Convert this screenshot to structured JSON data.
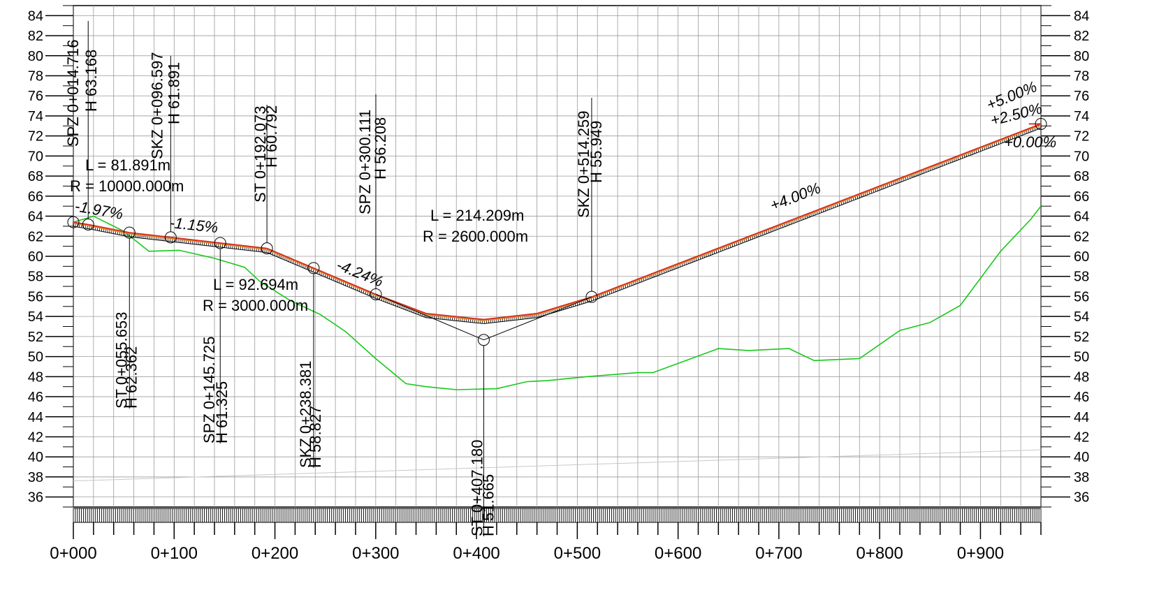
{
  "colors": {
    "background": "#ffffff",
    "grid": "#9a9a9a",
    "axis": "#000000",
    "design_line": "#d62b1e",
    "design_line_shadow": "#e08a2c",
    "terrain": "#18c81a",
    "hatch": "#000000",
    "text": "#000000"
  },
  "chart_data": {
    "type": "line",
    "elevation_ticks": [
      "84",
      "82",
      "80",
      "78",
      "76",
      "74",
      "72",
      "70",
      "68",
      "66",
      "64",
      "62",
      "60",
      "58",
      "56",
      "54",
      "52",
      "50",
      "48",
      "46",
      "44",
      "42",
      "40",
      "38",
      "36"
    ],
    "station_ticks": [
      "0+000",
      "0+100",
      "0+200",
      "0+300",
      "0+400",
      "0+500",
      "0+600",
      "0+700",
      "0+800",
      "0+900"
    ],
    "x_range": [
      0,
      960
    ],
    "y_range": [
      35,
      85
    ],
    "series": [
      {
        "role": "design_profile",
        "x": [
          0,
          14.716,
          55.653,
          96.597,
          145.725,
          192.073,
          238.381,
          300.111,
          350,
          407.18,
          460,
          514.259,
          960
        ],
        "y": [
          63.4,
          63.168,
          62.362,
          61.891,
          61.325,
          60.792,
          58.827,
          56.208,
          54.3,
          53.7,
          54.3,
          55.949,
          73.2
        ]
      },
      {
        "role": "terrain",
        "x": [
          0,
          20,
          50,
          75,
          105,
          140,
          170,
          185,
          215,
          245,
          270,
          300,
          330,
          350,
          380,
          420,
          450,
          470,
          510,
          560,
          575,
          605,
          640,
          670,
          710,
          735,
          780,
          820,
          850,
          880,
          920,
          950,
          960
        ],
        "y": [
          63.4,
          64.0,
          62.5,
          60.5,
          60.6,
          59.8,
          58.9,
          57.5,
          55.6,
          54.2,
          52.5,
          49.8,
          47.3,
          47.0,
          46.7,
          46.8,
          47.5,
          47.6,
          48.0,
          48.4,
          48.4,
          49.5,
          50.8,
          50.6,
          50.8,
          49.6,
          49.8,
          52.6,
          53.4,
          55.1,
          60.5,
          63.7,
          65.0
        ]
      }
    ],
    "vertical_curves": [
      {
        "L": "L = 81.891m",
        "R": "R = 10000.000m"
      },
      {
        "L": "L = 92.694m",
        "R": "R = 3000.000m"
      },
      {
        "L": "L = 214.209m",
        "R": "R = 2600.000m"
      }
    ],
    "grade_labels": [
      "-1.97%",
      "-1.15%",
      "-4.24%",
      "+4.00%",
      "+5.00%",
      "+2.50%",
      "+0.00%"
    ],
    "stations": [
      {
        "name": "SPZ 0+014.716",
        "h": "H   63.168",
        "x": 14.716,
        "y": 63.168
      },
      {
        "name": "ST 0+055.653",
        "h": "H 62.362",
        "x": 55.653,
        "y": 62.362
      },
      {
        "name": "SKZ 0+096.597",
        "h": "H   61.891",
        "x": 96.597,
        "y": 61.891
      },
      {
        "name": "SPZ 0+145.725",
        "h": "H   61.325",
        "x": 145.725,
        "y": 61.325
      },
      {
        "name": "ST 0+192.073",
        "h": "H 60.792",
        "x": 192.073,
        "y": 60.792
      },
      {
        "name": "SKZ 0+238.381",
        "h": "H   58.827",
        "x": 238.381,
        "y": 58.827
      },
      {
        "name": "SPZ 0+300.111",
        "h": "H   56.208",
        "x": 300.111,
        "y": 56.208
      },
      {
        "name": "ST 0+407.180",
        "h": "H 51.665",
        "x": 407.18,
        "y": 51.665
      },
      {
        "name": "SKZ 0+514.259",
        "h": "H   55.949",
        "x": 514.259,
        "y": 55.949
      }
    ]
  }
}
